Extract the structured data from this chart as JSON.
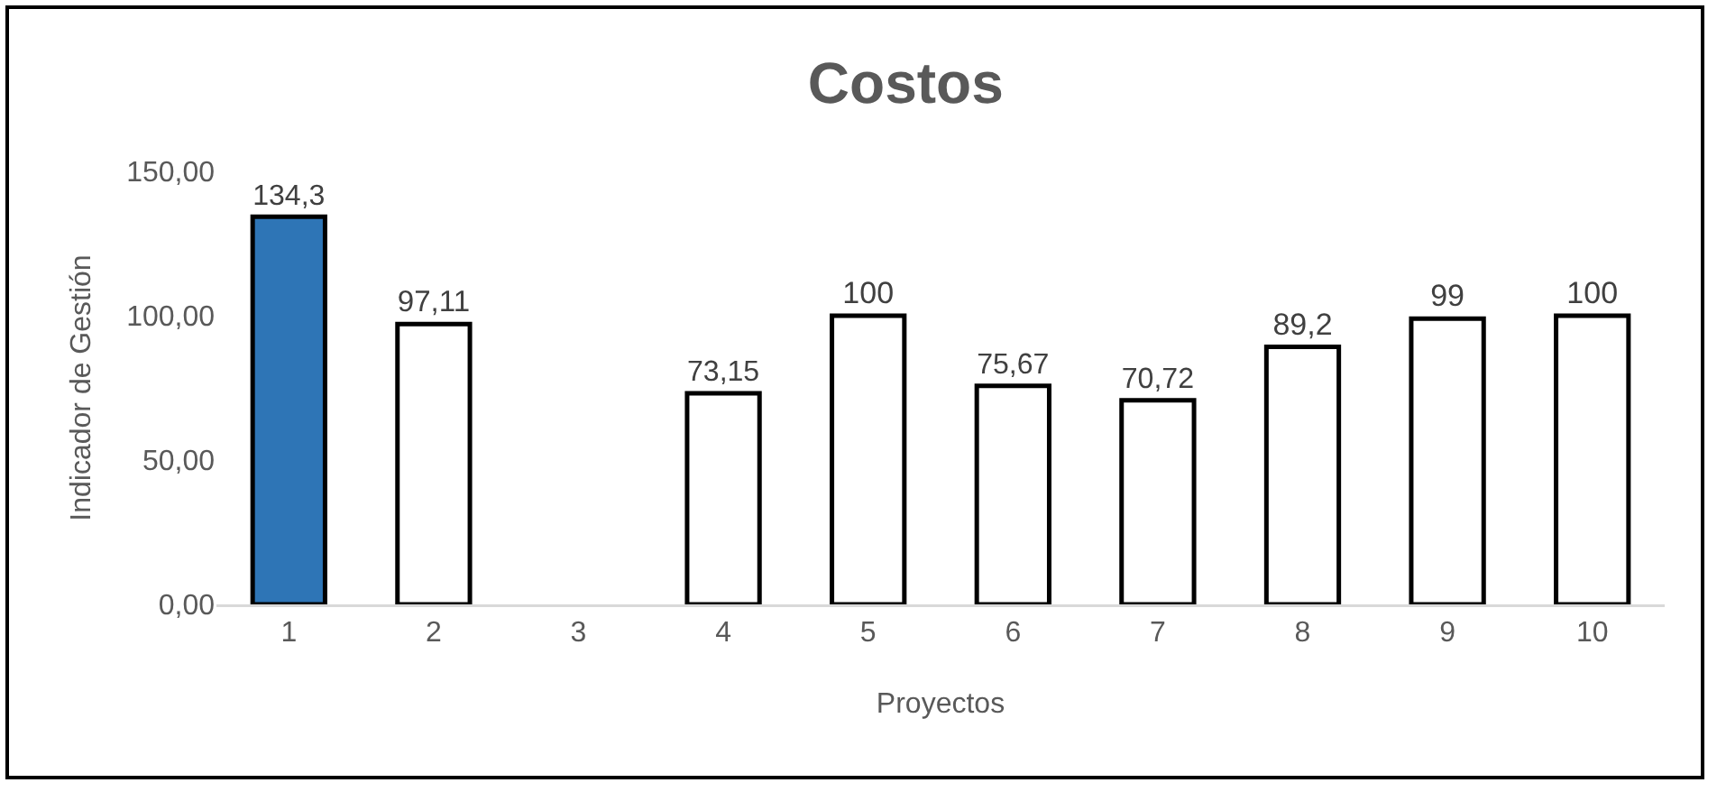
{
  "chart_data": {
    "type": "bar",
    "title": "Costos",
    "xlabel": "Proyectos",
    "ylabel": "Indicador de Gestión",
    "categories": [
      "1",
      "2",
      "3",
      "4",
      "5",
      "6",
      "7",
      "8",
      "9",
      "10"
    ],
    "values": [
      134.3,
      97.11,
      null,
      73.15,
      100,
      75.67,
      70.72,
      89.2,
      99,
      100
    ],
    "colors": [
      "#2e75b6",
      "#ffffff",
      "#ffffff",
      "#ffffff",
      "#ffffff",
      "#ffffff",
      "#ffffff",
      "#ffffff",
      "#ffffff",
      "#ffffff"
    ],
    "value_labels": [
      "134,3",
      "97,11",
      null,
      "73,15",
      "100",
      "75,67",
      "70,72",
      "89,2",
      "99",
      "100"
    ],
    "ylim": [
      0,
      150
    ],
    "yticks": [
      {
        "value": 0,
        "label": "0,00"
      },
      {
        "value": 50,
        "label": "50,00"
      },
      {
        "value": 100,
        "label": "100,00"
      },
      {
        "value": 150,
        "label": "150,00"
      }
    ],
    "grid": false
  }
}
